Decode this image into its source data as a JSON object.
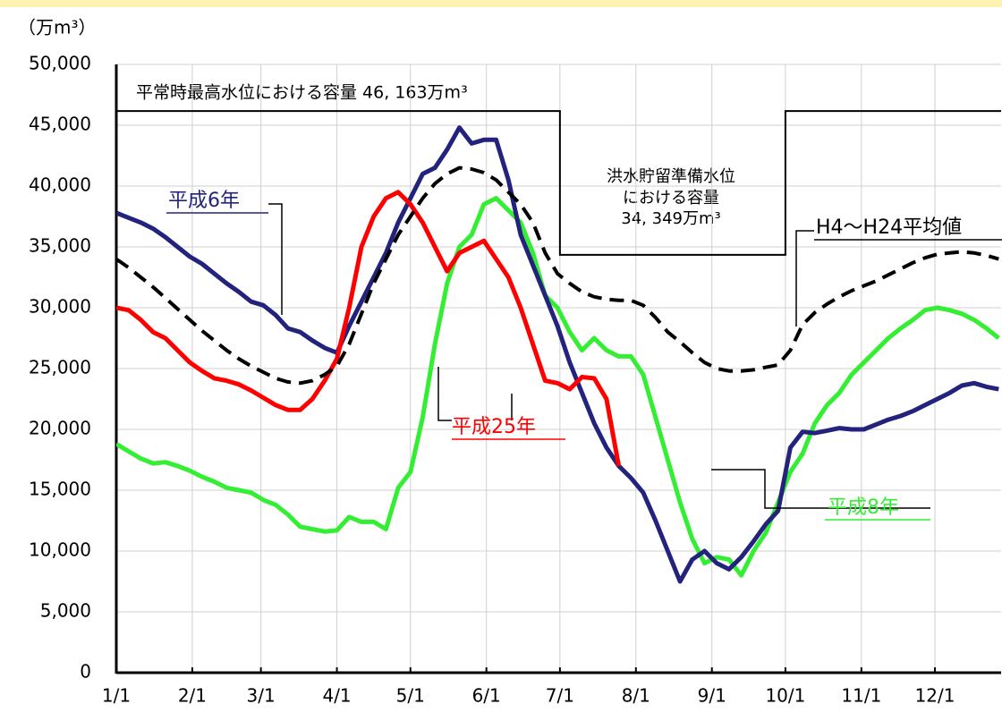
{
  "chart_data": {
    "type": "line",
    "y_unit": "（万m³）",
    "x": [
      0,
      5,
      10,
      15,
      20,
      25,
      30,
      35,
      40,
      45,
      50,
      55,
      60,
      65,
      70,
      75,
      80,
      85,
      90,
      95,
      100,
      105,
      110,
      115,
      120,
      125,
      130,
      135,
      140,
      145,
      150,
      155,
      160,
      165,
      170,
      175,
      180,
      185,
      190,
      195,
      200,
      205,
      210,
      215,
      220,
      225,
      230,
      235,
      240,
      245,
      250,
      255,
      260,
      265,
      270,
      275,
      280,
      285,
      290,
      295,
      300,
      305,
      310,
      315,
      320,
      325,
      330,
      335,
      340,
      345,
      350,
      355,
      360
    ],
    "xlim": [
      0,
      361
    ],
    "xticks": [
      {
        "value": 0,
        "label": "1/1"
      },
      {
        "value": 31,
        "label": "2/1"
      },
      {
        "value": 59,
        "label": "3/1"
      },
      {
        "value": 90,
        "label": "4/1"
      },
      {
        "value": 120,
        "label": "5/1"
      },
      {
        "value": 151,
        "label": "6/1"
      },
      {
        "value": 181,
        "label": "7/1"
      },
      {
        "value": 212,
        "label": "8/1"
      },
      {
        "value": 243,
        "label": "9/1"
      },
      {
        "value": 273,
        "label": "10/1"
      },
      {
        "value": 304,
        "label": "11/1"
      },
      {
        "value": 334,
        "label": "12/1"
      }
    ],
    "ylim": [
      0,
      50000
    ],
    "yticks": [
      0,
      {
        "value": 5000,
        "label": "5,000"
      },
      {
        "value": 10000,
        "label": "10,000"
      },
      {
        "value": 15000,
        "label": "15,000"
      },
      {
        "value": 20000,
        "label": "20,000"
      },
      {
        "value": 25000,
        "label": "25,000"
      },
      {
        "value": 30000,
        "label": "30,000"
      },
      {
        "value": 35000,
        "label": "35,000"
      },
      {
        "value": 40000,
        "label": "40,000"
      },
      {
        "value": 45000,
        "label": "45,000"
      },
      {
        "value": 50000,
        "label": "50,000"
      }
    ],
    "grid": true,
    "series": [
      {
        "name": "平成8年",
        "color": "#33ee33",
        "values": [
          18800,
          18200,
          17600,
          17200,
          17300,
          17000,
          16600,
          16100,
          15700,
          15200,
          15000,
          14800,
          14200,
          13800,
          13000,
          12000,
          11800,
          11600,
          11700,
          12800,
          12400,
          12400,
          11800,
          15200,
          16500,
          21000,
          27000,
          32000,
          35000,
          36000,
          38500,
          39000,
          38000,
          37000,
          34500,
          31000,
          30000,
          28000,
          26500,
          27500,
          26500,
          26000,
          26000,
          24500,
          21000,
          17500,
          14000,
          11000,
          9000,
          9500,
          9300,
          8000,
          10000,
          11500,
          14000,
          16500,
          18000,
          20500,
          22000,
          23000,
          24500,
          25500,
          26500,
          27500,
          28300,
          29000,
          29800,
          30000,
          29800,
          29500,
          29000,
          28300,
          27500
        ]
      },
      {
        "name": "平成6年",
        "color": "#23237d",
        "values": [
          37800,
          37400,
          37000,
          36500,
          35800,
          35000,
          34200,
          33600,
          32800,
          32000,
          31300,
          30500,
          30200,
          29400,
          28300,
          28000,
          27300,
          26700,
          26300,
          28500,
          30500,
          32500,
          34500,
          37000,
          39000,
          41000,
          41500,
          43000,
          44800,
          43500,
          43800,
          43800,
          40500,
          36000,
          33500,
          31000,
          28500,
          25500,
          23000,
          20500,
          18500,
          17000,
          16000,
          14800,
          12500,
          10000,
          7500,
          9300,
          10000,
          9000,
          8500,
          9500,
          10800,
          12200,
          13300,
          18500,
          19800,
          19700,
          19900,
          20100,
          20000,
          20000,
          20400,
          20800,
          21100,
          21500,
          22000,
          22500,
          23000,
          23600,
          23800,
          23500,
          23300
        ]
      },
      {
        "name": "平成25年",
        "color": "#ff0000",
        "values": [
          30000,
          29800,
          29000,
          28000,
          27500,
          26500,
          25500,
          24800,
          24200,
          24000,
          23700,
          23200,
          22600,
          22000,
          21600,
          21600,
          22500,
          24000,
          25800,
          30000,
          35000,
          37500,
          39000,
          39500,
          38500,
          37000,
          35000,
          33000,
          34500,
          35000,
          35500,
          34000,
          32500,
          30000,
          27000,
          24000,
          23800,
          23300,
          24300,
          24200,
          22500,
          17000,
          null,
          null,
          null,
          null,
          null,
          null,
          null,
          null,
          null,
          null,
          null,
          null,
          null,
          null,
          null,
          null,
          null,
          null,
          null,
          null,
          null,
          null,
          null,
          null,
          null,
          null,
          null,
          null,
          null,
          null,
          null
        ]
      },
      {
        "name": "H4～H24平均値",
        "color": "#000000",
        "dashed": true,
        "values": [
          34000,
          33300,
          32500,
          31700,
          30800,
          29900,
          29000,
          28100,
          27300,
          26500,
          25800,
          25200,
          24700,
          24200,
          23900,
          23800,
          24000,
          24500,
          25200,
          27000,
          29500,
          32000,
          34000,
          36000,
          37500,
          39000,
          40200,
          41000,
          41500,
          41400,
          41100,
          40500,
          39500,
          38500,
          37000,
          34500,
          32800,
          32000,
          31300,
          30900,
          30700,
          30600,
          30600,
          30200,
          29200,
          28000,
          27200,
          26300,
          25500,
          25000,
          24800,
          24800,
          24900,
          25100,
          25300,
          26500,
          28600,
          29600,
          30300,
          30900,
          31400,
          31800,
          32200,
          32700,
          33200,
          33700,
          34100,
          34400,
          34500,
          34600,
          34500,
          34300,
          34000
        ]
      }
    ],
    "capacity": {
      "color": "#000000",
      "x": [
        0,
        181,
        181,
        273,
        273,
        361
      ],
      "values": [
        46163,
        46163,
        34349,
        34349,
        46163,
        46163
      ]
    },
    "capacity_label": "平常時最高水位における容量 46, 163万m³",
    "flood_label": [
      "洪水貯留準備水位",
      "における容量",
      "34, 349万m³"
    ]
  }
}
